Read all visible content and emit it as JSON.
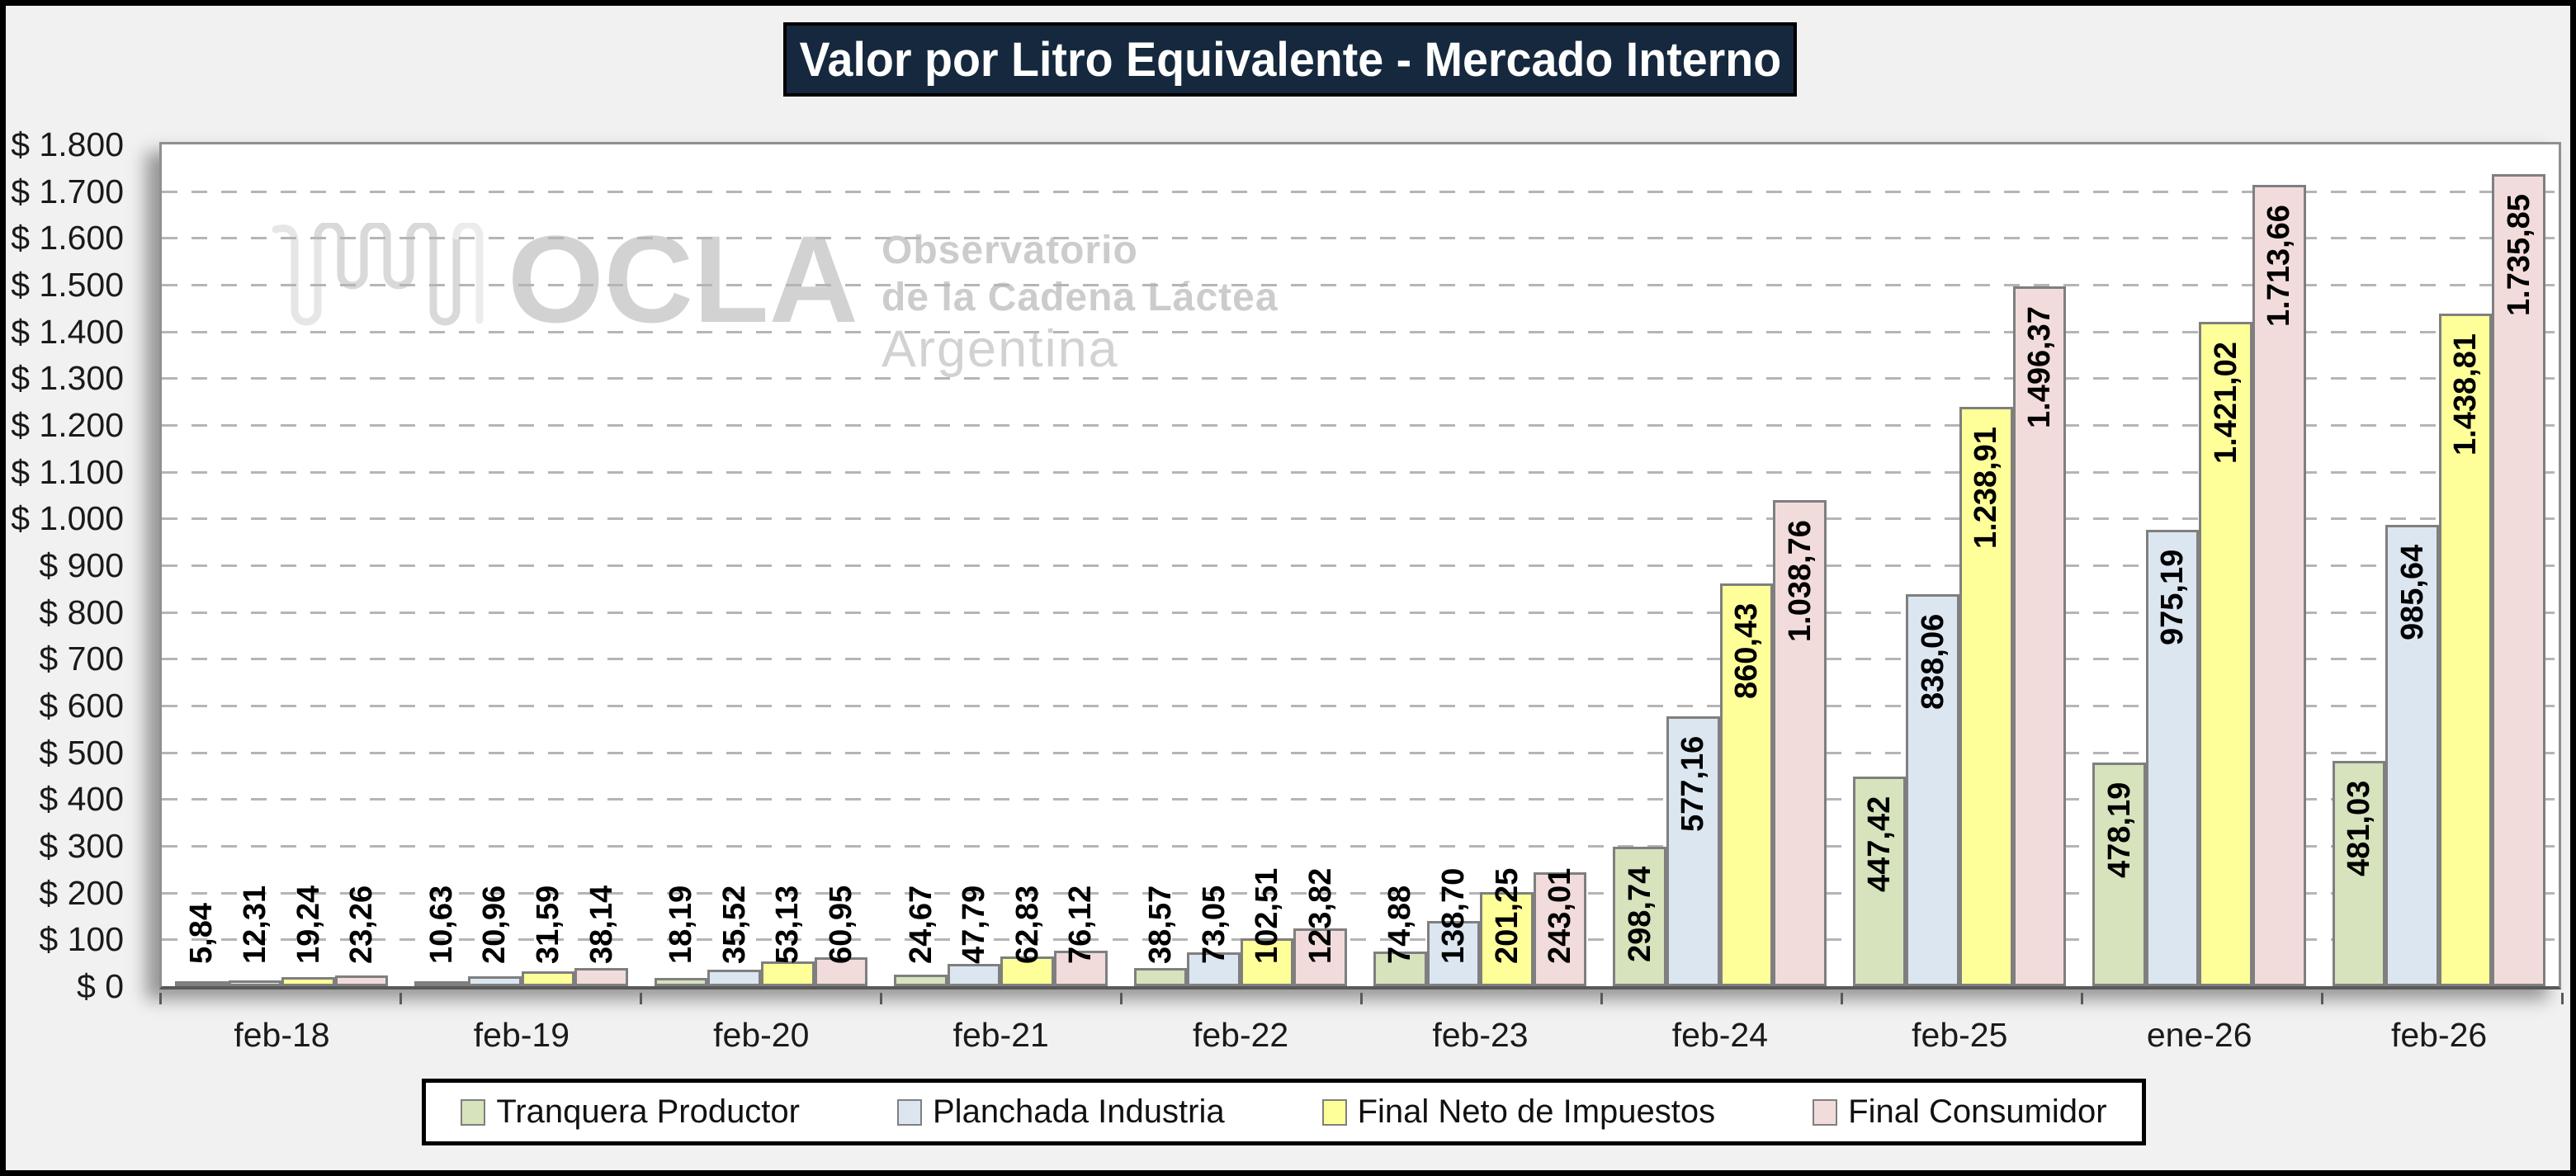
{
  "title": "Valor por Litro Equivalente - Mercado Interno",
  "watermark": {
    "brand": "OCLA",
    "line1": "Observatorio",
    "line2": "de la Cadena Láctea",
    "line3": "Argentina"
  },
  "chart_data": {
    "type": "bar",
    "title": "Valor por Litro Equivalente - Mercado Interno",
    "categories": [
      "feb-18",
      "feb-19",
      "feb-20",
      "feb-21",
      "feb-22",
      "feb-23",
      "feb-24",
      "feb-25",
      "ene-26",
      "feb-26"
    ],
    "series": [
      {
        "name": "Tranquera Productor",
        "color": "#d6e3bc",
        "values": [
          5.84,
          10.63,
          18.19,
          24.67,
          38.57,
          74.88,
          298.74,
          447.42,
          478.19,
          481.03
        ],
        "labels": [
          "5,84",
          "10,63",
          "18,19",
          "24,67",
          "38,57",
          "74,88",
          "298,74",
          "447,42",
          "478,19",
          "481,03"
        ]
      },
      {
        "name": "Planchada Industria",
        "color": "#dce6f1",
        "values": [
          12.31,
          20.96,
          35.52,
          47.79,
          73.05,
          138.7,
          577.16,
          838.06,
          975.19,
          985.64
        ],
        "labels": [
          "12,31",
          "20,96",
          "35,52",
          "47,79",
          "73,05",
          "138,70",
          "577,16",
          "838,06",
          "975,19",
          "985,64"
        ]
      },
      {
        "name": "Final Neto de Impuestos",
        "color": "#ffff99",
        "values": [
          19.24,
          31.59,
          53.13,
          62.83,
          102.51,
          201.25,
          860.43,
          1238.91,
          1421.02,
          1438.81
        ],
        "labels": [
          "19,24",
          "31,59",
          "53,13",
          "62,83",
          "102,51",
          "201,25",
          "860,43",
          "1.238,91",
          "1.421,02",
          "1.438,81"
        ]
      },
      {
        "name": "Final Consumidor",
        "color": "#f2dcdb",
        "values": [
          23.26,
          38.14,
          60.95,
          76.12,
          123.82,
          243.01,
          1038.76,
          1496.37,
          1713.66,
          1735.85
        ],
        "labels": [
          "23,26",
          "38,14",
          "60,95",
          "76,12",
          "123,82",
          "243,01",
          "1.038,76",
          "1.496,37",
          "1.713,66",
          "1.735,85"
        ]
      }
    ],
    "ylim": [
      0,
      1800
    ],
    "ytick_step": 100,
    "ytick_labels": [
      "$ 0",
      "$ 100",
      "$ 200",
      "$ 300",
      "$ 400",
      "$ 500",
      "$ 600",
      "$ 700",
      "$ 800",
      "$ 900",
      "$ 1.000",
      "$ 1.100",
      "$ 1.200",
      "$ 1.300",
      "$ 1.400",
      "$ 1.500",
      "$ 1.600",
      "$ 1.700",
      "$ 1.800"
    ],
    "grid": "dashed-horizontal",
    "legend_position": "bottom"
  }
}
